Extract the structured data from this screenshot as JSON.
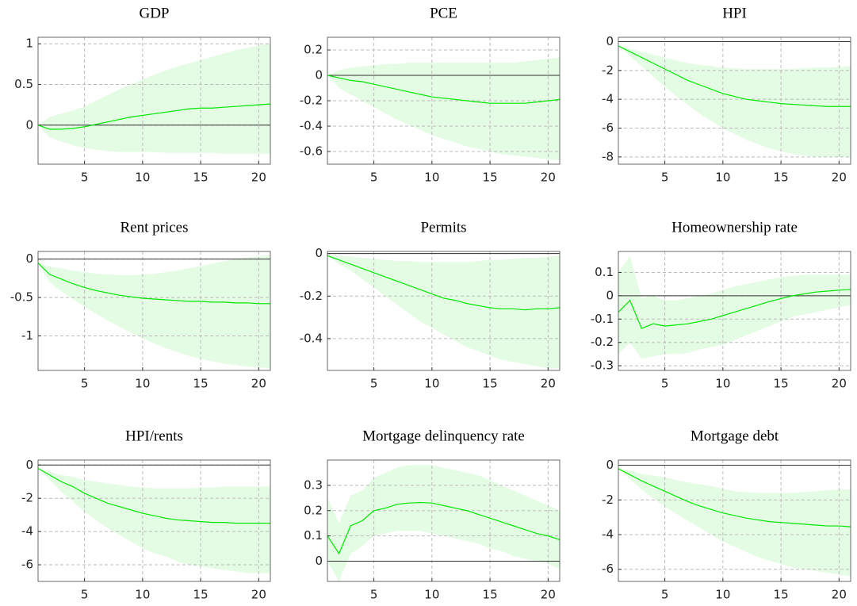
{
  "chart_data": [
    {
      "type": "line",
      "title": "GDP",
      "x": [
        1,
        2,
        3,
        4,
        5,
        6,
        7,
        8,
        9,
        10,
        11,
        12,
        13,
        14,
        15,
        16,
        17,
        18,
        19,
        20,
        21
      ],
      "xlim": [
        1,
        21
      ],
      "xticks": [
        5,
        10,
        15,
        20
      ],
      "ylim": [
        -0.48,
        1.08
      ],
      "yticks": [
        0,
        0.5,
        1
      ],
      "grid": true,
      "hline": 0,
      "color": "#00e600",
      "values": [
        0,
        -0.05,
        -0.05,
        -0.04,
        -0.02,
        0.01,
        0.04,
        0.07,
        0.1,
        0.12,
        0.14,
        0.16,
        0.18,
        0.2,
        0.21,
        0.21,
        0.22,
        0.23,
        0.24,
        0.25,
        0.26
      ],
      "band": {
        "color": "#e4fbe4",
        "lower": [
          0,
          -0.15,
          -0.2,
          -0.25,
          -0.28,
          -0.3,
          -0.32,
          -0.33,
          -0.33,
          -0.33,
          -0.33,
          -0.34,
          -0.34,
          -0.34,
          -0.34,
          -0.34,
          -0.35,
          -0.35,
          -0.35,
          -0.35,
          -0.35
        ],
        "upper": [
          0,
          0.1,
          0.14,
          0.18,
          0.23,
          0.3,
          0.37,
          0.44,
          0.5,
          0.56,
          0.62,
          0.67,
          0.72,
          0.76,
          0.8,
          0.84,
          0.88,
          0.92,
          0.95,
          0.98,
          1.0
        ]
      }
    },
    {
      "type": "line",
      "title": "PCE",
      "x": [
        1,
        2,
        3,
        4,
        5,
        6,
        7,
        8,
        9,
        10,
        11,
        12,
        13,
        14,
        15,
        16,
        17,
        18,
        19,
        20,
        21
      ],
      "xlim": [
        1,
        21
      ],
      "xticks": [
        5,
        10,
        15,
        20
      ],
      "ylim": [
        -0.7,
        0.3
      ],
      "yticks": [
        -0.6,
        -0.4,
        -0.2,
        0,
        0.2
      ],
      "grid": true,
      "hline": 0,
      "color": "#00e600",
      "values": [
        0,
        -0.02,
        -0.04,
        -0.05,
        -0.07,
        -0.09,
        -0.11,
        -0.13,
        -0.15,
        -0.17,
        -0.18,
        -0.19,
        -0.2,
        -0.21,
        -0.22,
        -0.22,
        -0.22,
        -0.22,
        -0.21,
        -0.2,
        -0.19
      ],
      "band": {
        "color": "#e4fbe4",
        "lower": [
          0,
          -0.1,
          -0.15,
          -0.2,
          -0.25,
          -0.3,
          -0.35,
          -0.39,
          -0.43,
          -0.47,
          -0.5,
          -0.53,
          -0.56,
          -0.58,
          -0.6,
          -0.62,
          -0.63,
          -0.64,
          -0.65,
          -0.66,
          -0.67
        ],
        "upper": [
          0,
          0.04,
          0.06,
          0.07,
          0.08,
          0.09,
          0.09,
          0.1,
          0.1,
          0.1,
          0.1,
          0.1,
          0.1,
          0.1,
          0.1,
          0.1,
          0.1,
          0.11,
          0.12,
          0.13,
          0.14
        ]
      }
    },
    {
      "type": "line",
      "title": "HPI",
      "x": [
        1,
        2,
        3,
        4,
        5,
        6,
        7,
        8,
        9,
        10,
        11,
        12,
        13,
        14,
        15,
        16,
        17,
        18,
        19,
        20,
        21
      ],
      "xlim": [
        1,
        21
      ],
      "xticks": [
        5,
        10,
        15,
        20
      ],
      "ylim": [
        -8.5,
        0.3
      ],
      "yticks": [
        -8,
        -6,
        -4,
        -2,
        0
      ],
      "grid": true,
      "hline": 0,
      "color": "#00e600",
      "values": [
        -0.3,
        -0.7,
        -1.1,
        -1.5,
        -1.9,
        -2.3,
        -2.7,
        -3,
        -3.3,
        -3.6,
        -3.8,
        -4,
        -4.1,
        -4.2,
        -4.3,
        -4.35,
        -4.4,
        -4.45,
        -4.5,
        -4.5,
        -4.5
      ],
      "band": {
        "color": "#e4fbe4",
        "lower": [
          -0.3,
          -1,
          -1.7,
          -2.4,
          -3.1,
          -3.8,
          -4.4,
          -5,
          -5.5,
          -6,
          -6.4,
          -6.8,
          -7.1,
          -7.4,
          -7.6,
          -7.8,
          -7.9,
          -8,
          -8,
          -8,
          -8
        ],
        "upper": [
          -0.3,
          -0.5,
          -0.7,
          -0.9,
          -1.1,
          -1.3,
          -1.5,
          -1.6,
          -1.7,
          -1.8,
          -1.85,
          -1.9,
          -1.9,
          -1.9,
          -1.9,
          -1.9,
          -1.85,
          -1.8,
          -1.8,
          -1.75,
          -1.7
        ]
      }
    },
    {
      "type": "line",
      "title": "Rent prices",
      "x": [
        1,
        2,
        3,
        4,
        5,
        6,
        7,
        8,
        9,
        10,
        11,
        12,
        13,
        14,
        15,
        16,
        17,
        18,
        19,
        20,
        21
      ],
      "xlim": [
        1,
        21
      ],
      "xticks": [
        5,
        10,
        15,
        20
      ],
      "ylim": [
        -1.45,
        0.1
      ],
      "yticks": [
        -1,
        -0.5,
        0
      ],
      "grid": true,
      "hline": 0,
      "color": "#00e600",
      "values": [
        -0.05,
        -0.2,
        -0.26,
        -0.32,
        -0.37,
        -0.41,
        -0.44,
        -0.47,
        -0.49,
        -0.51,
        -0.52,
        -0.53,
        -0.54,
        -0.55,
        -0.55,
        -0.56,
        -0.56,
        -0.57,
        -0.57,
        -0.58,
        -0.58
      ],
      "band": {
        "color": "#e4fbe4",
        "lower": [
          -0.05,
          -0.3,
          -0.42,
          -0.52,
          -0.62,
          -0.71,
          -0.8,
          -0.88,
          -0.96,
          -1.03,
          -1.1,
          -1.16,
          -1.21,
          -1.26,
          -1.3,
          -1.33,
          -1.36,
          -1.38,
          -1.4,
          -1.41,
          -1.42
        ],
        "upper": [
          -0.05,
          -0.1,
          -0.12,
          -0.15,
          -0.17,
          -0.19,
          -0.2,
          -0.21,
          -0.21,
          -0.2,
          -0.19,
          -0.17,
          -0.15,
          -0.12,
          -0.09,
          -0.06,
          -0.03,
          0,
          0.02,
          0.04,
          0.05
        ]
      }
    },
    {
      "type": "line",
      "title": "Permits",
      "x": [
        1,
        2,
        3,
        4,
        5,
        6,
        7,
        8,
        9,
        10,
        11,
        12,
        13,
        14,
        15,
        16,
        17,
        18,
        19,
        20,
        21
      ],
      "xlim": [
        1,
        21
      ],
      "xticks": [
        5,
        10,
        15,
        20
      ],
      "ylim": [
        -0.55,
        0.01
      ],
      "yticks": [
        -0.4,
        -0.2,
        0
      ],
      "grid": true,
      "hline": 0,
      "color": "#00e600",
      "values": [
        -0.01,
        -0.03,
        -0.05,
        -0.07,
        -0.09,
        -0.11,
        -0.13,
        -0.15,
        -0.17,
        -0.19,
        -0.21,
        -0.22,
        -0.235,
        -0.245,
        -0.255,
        -0.26,
        -0.26,
        -0.265,
        -0.26,
        -0.26,
        -0.255
      ],
      "band": {
        "color": "#e4fbe4",
        "lower": [
          -0.01,
          -0.05,
          -0.08,
          -0.12,
          -0.16,
          -0.2,
          -0.24,
          -0.28,
          -0.32,
          -0.35,
          -0.38,
          -0.41,
          -0.44,
          -0.46,
          -0.48,
          -0.5,
          -0.51,
          -0.52,
          -0.53,
          -0.54,
          -0.54
        ],
        "upper": [
          -0.01,
          -0.01,
          -0.015,
          -0.02,
          -0.025,
          -0.03,
          -0.035,
          -0.035,
          -0.04,
          -0.04,
          -0.04,
          -0.04,
          -0.04,
          -0.035,
          -0.03,
          -0.03,
          -0.025,
          -0.02,
          -0.02,
          -0.015,
          -0.01
        ]
      }
    },
    {
      "type": "line",
      "title": "Homeownership rate",
      "x": [
        1,
        2,
        3,
        4,
        5,
        6,
        7,
        8,
        9,
        10,
        11,
        12,
        13,
        14,
        15,
        16,
        17,
        18,
        19,
        20,
        21
      ],
      "xlim": [
        1,
        21
      ],
      "xticks": [
        5,
        10,
        15,
        20
      ],
      "ylim": [
        -0.32,
        0.19
      ],
      "yticks": [
        -0.3,
        -0.2,
        -0.1,
        0,
        0.1
      ],
      "grid": true,
      "hline": 0,
      "color": "#00e600",
      "values": [
        -0.07,
        -0.02,
        -0.14,
        -0.12,
        -0.13,
        -0.125,
        -0.12,
        -0.11,
        -0.1,
        -0.085,
        -0.07,
        -0.055,
        -0.04,
        -0.025,
        -0.012,
        0,
        0.008,
        0.016,
        0.02,
        0.024,
        0.027
      ],
      "band": {
        "color": "#e4fbe4",
        "lower": [
          -0.25,
          -0.2,
          -0.27,
          -0.26,
          -0.25,
          -0.25,
          -0.245,
          -0.23,
          -0.22,
          -0.21,
          -0.19,
          -0.17,
          -0.15,
          -0.13,
          -0.11,
          -0.09,
          -0.08,
          -0.07,
          -0.06,
          -0.05,
          -0.04
        ],
        "upper": [
          0.1,
          0.17,
          -0.01,
          0,
          -0.02,
          -0.02,
          -0.01,
          0,
          0.01,
          0.025,
          0.04,
          0.05,
          0.06,
          0.07,
          0.08,
          0.085,
          0.09,
          0.09,
          0.09,
          0.09,
          0.09
        ]
      }
    },
    {
      "type": "line",
      "title": "HPI/rents",
      "x": [
        1,
        2,
        3,
        4,
        5,
        6,
        7,
        8,
        9,
        10,
        11,
        12,
        13,
        14,
        15,
        16,
        17,
        18,
        19,
        20,
        21
      ],
      "xlim": [
        1,
        21
      ],
      "xticks": [
        5,
        10,
        15,
        20
      ],
      "ylim": [
        -7,
        0.3
      ],
      "yticks": [
        -6,
        -4,
        -2,
        0
      ],
      "grid": true,
      "hline": 0,
      "color": "#00e600",
      "values": [
        -0.2,
        -0.6,
        -1,
        -1.3,
        -1.7,
        -2,
        -2.3,
        -2.5,
        -2.7,
        -2.9,
        -3.05,
        -3.2,
        -3.3,
        -3.35,
        -3.4,
        -3.45,
        -3.45,
        -3.5,
        -3.5,
        -3.5,
        -3.5
      ],
      "band": {
        "color": "#e4fbe4",
        "lower": [
          -0.2,
          -0.9,
          -1.6,
          -2.2,
          -2.8,
          -3.3,
          -3.8,
          -4.2,
          -4.6,
          -5,
          -5.3,
          -5.5,
          -5.8,
          -6,
          -6.1,
          -6.2,
          -6.3,
          -6.4,
          -6.5,
          -6.5,
          -6.5
        ],
        "upper": [
          -0.2,
          -0.4,
          -0.6,
          -0.7,
          -0.9,
          -1,
          -1.1,
          -1.2,
          -1.3,
          -1.35,
          -1.4,
          -1.4,
          -1.4,
          -1.4,
          -1.35,
          -1.35,
          -1.3,
          -1.3,
          -1.3,
          -1.3,
          -1.3
        ]
      }
    },
    {
      "type": "line",
      "title": "Mortgage delinquency rate",
      "x": [
        1,
        2,
        3,
        4,
        5,
        6,
        7,
        8,
        9,
        10,
        11,
        12,
        13,
        14,
        15,
        16,
        17,
        18,
        19,
        20,
        21
      ],
      "xlim": [
        1,
        21
      ],
      "xticks": [
        5,
        10,
        15,
        20
      ],
      "ylim": [
        -0.08,
        0.4
      ],
      "yticks": [
        0,
        0.1,
        0.2,
        0.3
      ],
      "grid": true,
      "hline": 0,
      "color": "#00e600",
      "values": [
        0.1,
        0.03,
        0.14,
        0.16,
        0.2,
        0.21,
        0.225,
        0.23,
        0.232,
        0.23,
        0.22,
        0.21,
        0.2,
        0.185,
        0.17,
        0.155,
        0.14,
        0.125,
        0.11,
        0.1,
        0.085
      ],
      "band": {
        "color": "#e4fbe4",
        "lower": [
          0,
          -0.08,
          0.03,
          0.06,
          0.1,
          0.11,
          0.12,
          0.12,
          0.12,
          0.11,
          0.1,
          0.09,
          0.08,
          0.07,
          0.05,
          0.04,
          0.02,
          0.01,
          0,
          -0.01,
          -0.03
        ],
        "upper": [
          0.25,
          0.15,
          0.26,
          0.28,
          0.33,
          0.35,
          0.37,
          0.38,
          0.38,
          0.38,
          0.37,
          0.36,
          0.35,
          0.34,
          0.32,
          0.3,
          0.28,
          0.26,
          0.24,
          0.22,
          0.2
        ]
      }
    },
    {
      "type": "line",
      "title": "Mortgage debt",
      "x": [
        1,
        2,
        3,
        4,
        5,
        6,
        7,
        8,
        9,
        10,
        11,
        12,
        13,
        14,
        15,
        16,
        17,
        18,
        19,
        20,
        21
      ],
      "xlim": [
        1,
        21
      ],
      "xticks": [
        5,
        10,
        15,
        20
      ],
      "ylim": [
        -6.7,
        0.3
      ],
      "yticks": [
        -6,
        -4,
        -2,
        0
      ],
      "grid": true,
      "hline": 0,
      "color": "#00e600",
      "values": [
        -0.2,
        -0.55,
        -0.9,
        -1.2,
        -1.5,
        -1.8,
        -2.1,
        -2.35,
        -2.55,
        -2.75,
        -2.9,
        -3.05,
        -3.15,
        -3.25,
        -3.3,
        -3.35,
        -3.4,
        -3.45,
        -3.5,
        -3.5,
        -3.55
      ],
      "band": {
        "color": "#e4fbe4",
        "lower": [
          -0.2,
          -0.8,
          -1.4,
          -1.9,
          -2.4,
          -2.8,
          -3.2,
          -3.6,
          -4,
          -4.4,
          -4.7,
          -5,
          -5.3,
          -5.5,
          -5.7,
          -5.9,
          -6,
          -6.1,
          -6.2,
          -6.3,
          -6.4
        ],
        "upper": [
          -0.2,
          -0.3,
          -0.5,
          -0.6,
          -0.7,
          -0.85,
          -1,
          -1.1,
          -1.2,
          -1.35,
          -1.5,
          -1.55,
          -1.6,
          -1.6,
          -1.6,
          -1.6,
          -1.55,
          -1.5,
          -1.45,
          -1.4,
          -1.4
        ]
      }
    }
  ]
}
